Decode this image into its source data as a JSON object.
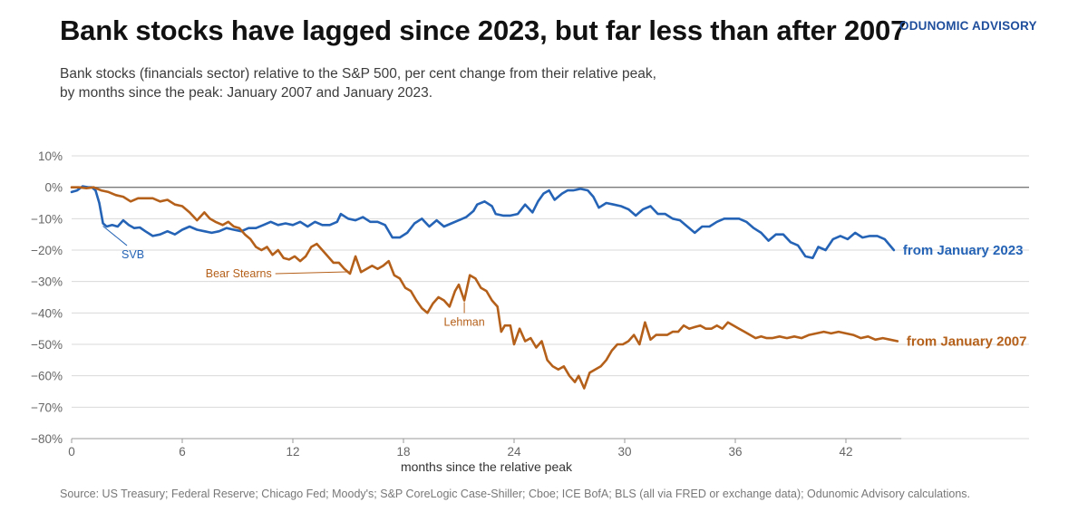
{
  "header": {
    "title": "Bank stocks have lagged since 2023, but far less than after 2007",
    "brand": "ODUNOMIC ADVISORY",
    "subtitle_line1": "Bank stocks (financials sector) relative to the S&P 500, per cent change from their relative peak,",
    "subtitle_line2": "by months since the peak: January 2007 and January 2023."
  },
  "source": "Source: US Treasury; Federal Reserve; Chicago Fed; Moody's; S&P CoreLogic Case-Shiller; Cboe; ICE BofA; BLS (all via FRED or exchange data); Odunomic Advisory calculations.",
  "colors": {
    "series_2023": "#2463b5",
    "series_2007": "#b5601a",
    "grid": "#d9d9d9",
    "zero_line": "#7a7a7a"
  },
  "chart_data": {
    "type": "line",
    "xlabel": "months since the relative peak",
    "ylabel": "",
    "xlim": [
      0,
      45
    ],
    "ylim": [
      -80,
      10
    ],
    "xticks": [
      0,
      6,
      12,
      18,
      24,
      30,
      36,
      42
    ],
    "yticks": [
      10,
      0,
      -10,
      -20,
      -30,
      -40,
      -50,
      -60,
      -70,
      -80
    ],
    "ytick_labels": [
      "10%",
      "0%",
      "−10%",
      "−20%",
      "−30%",
      "−40%",
      "−50%",
      "−60%",
      "−70%",
      "−80%"
    ],
    "grid": "horizontal",
    "series": [
      {
        "name": "from January 2023",
        "color": "#2463b5",
        "points": [
          [
            0,
            -1.5
          ],
          [
            0.3,
            -1
          ],
          [
            0.6,
            0.3
          ],
          [
            0.9,
            0
          ],
          [
            1.1,
            0
          ],
          [
            1.3,
            -1
          ],
          [
            1.5,
            -5
          ],
          [
            1.7,
            -11.5
          ],
          [
            1.9,
            -12.5
          ],
          [
            2.2,
            -12
          ],
          [
            2.5,
            -12.5
          ],
          [
            2.8,
            -10.5
          ],
          [
            3.1,
            -12
          ],
          [
            3.4,
            -13
          ],
          [
            3.7,
            -12.8
          ],
          [
            4,
            -14
          ],
          [
            4.4,
            -15.5
          ],
          [
            4.8,
            -15
          ],
          [
            5.2,
            -14
          ],
          [
            5.6,
            -15
          ],
          [
            6,
            -13.5
          ],
          [
            6.4,
            -12.5
          ],
          [
            6.8,
            -13.5
          ],
          [
            7.2,
            -14
          ],
          [
            7.6,
            -14.5
          ],
          [
            8,
            -14
          ],
          [
            8.4,
            -13
          ],
          [
            8.8,
            -13.5
          ],
          [
            9.2,
            -14
          ],
          [
            9.6,
            -13
          ],
          [
            10,
            -13
          ],
          [
            10.4,
            -12
          ],
          [
            10.8,
            -11
          ],
          [
            11.2,
            -12
          ],
          [
            11.6,
            -11.5
          ],
          [
            12,
            -12
          ],
          [
            12.4,
            -11
          ],
          [
            12.8,
            -12.5
          ],
          [
            13.2,
            -11
          ],
          [
            13.6,
            -12
          ],
          [
            14,
            -12
          ],
          [
            14.4,
            -11
          ],
          [
            14.6,
            -8.5
          ],
          [
            15,
            -10
          ],
          [
            15.4,
            -10.5
          ],
          [
            15.8,
            -9.5
          ],
          [
            16.2,
            -11
          ],
          [
            16.6,
            -11
          ],
          [
            17,
            -12
          ],
          [
            17.4,
            -16
          ],
          [
            17.8,
            -16
          ],
          [
            18.2,
            -14.5
          ],
          [
            18.6,
            -11.5
          ],
          [
            19,
            -10
          ],
          [
            19.4,
            -12.5
          ],
          [
            19.8,
            -10.5
          ],
          [
            20.2,
            -12.5
          ],
          [
            20.6,
            -11.5
          ],
          [
            21,
            -10.5
          ],
          [
            21.4,
            -9.5
          ],
          [
            21.8,
            -7.5
          ],
          [
            22,
            -5.5
          ],
          [
            22.4,
            -4.5
          ],
          [
            22.8,
            -6
          ],
          [
            23,
            -8.5
          ],
          [
            23.4,
            -9
          ],
          [
            23.8,
            -9
          ],
          [
            24.2,
            -8.5
          ],
          [
            24.6,
            -5.5
          ],
          [
            25,
            -8
          ],
          [
            25.3,
            -4.5
          ],
          [
            25.6,
            -2
          ],
          [
            25.9,
            -1
          ],
          [
            26.2,
            -4
          ],
          [
            26.6,
            -2
          ],
          [
            26.9,
            -1
          ],
          [
            27.2,
            -1
          ],
          [
            27.6,
            -0.5
          ],
          [
            28,
            -1
          ],
          [
            28.3,
            -3
          ],
          [
            28.6,
            -6.5
          ],
          [
            29,
            -5
          ],
          [
            29.4,
            -5.5
          ],
          [
            29.8,
            -6
          ],
          [
            30.2,
            -7
          ],
          [
            30.6,
            -9
          ],
          [
            31,
            -7
          ],
          [
            31.4,
            -6
          ],
          [
            31.8,
            -8.5
          ],
          [
            32.2,
            -8.5
          ],
          [
            32.6,
            -10
          ],
          [
            33,
            -10.5
          ],
          [
            33.4,
            -12.5
          ],
          [
            33.8,
            -14.5
          ],
          [
            34.2,
            -12.5
          ],
          [
            34.6,
            -12.5
          ],
          [
            35,
            -11
          ],
          [
            35.4,
            -10
          ],
          [
            35.8,
            -10
          ],
          [
            36.2,
            -10
          ],
          [
            36.6,
            -11
          ],
          [
            37,
            -13
          ],
          [
            37.4,
            -14.5
          ],
          [
            37.8,
            -17
          ],
          [
            38.2,
            -15
          ],
          [
            38.6,
            -15
          ],
          [
            39,
            -17.5
          ],
          [
            39.4,
            -18.5
          ],
          [
            39.8,
            -22
          ],
          [
            40.2,
            -22.5
          ],
          [
            40.5,
            -19
          ],
          [
            40.9,
            -20
          ],
          [
            41.3,
            -16.5
          ],
          [
            41.7,
            -15.5
          ],
          [
            42.1,
            -16.5
          ],
          [
            42.5,
            -14.5
          ],
          [
            42.9,
            -16
          ],
          [
            43.3,
            -15.5
          ],
          [
            43.7,
            -15.5
          ],
          [
            44.1,
            -16.5
          ],
          [
            44.6,
            -20
          ]
        ]
      },
      {
        "name": "from January 2007",
        "color": "#b5601a",
        "points": [
          [
            0,
            0
          ],
          [
            0.4,
            0
          ],
          [
            0.8,
            -0.3
          ],
          [
            1.2,
            0
          ],
          [
            1.6,
            -1
          ],
          [
            2,
            -1.5
          ],
          [
            2.4,
            -2.5
          ],
          [
            2.8,
            -3
          ],
          [
            3.2,
            -4.5
          ],
          [
            3.6,
            -3.5
          ],
          [
            4,
            -3.5
          ],
          [
            4.4,
            -3.5
          ],
          [
            4.8,
            -4.5
          ],
          [
            5.2,
            -4
          ],
          [
            5.6,
            -5.5
          ],
          [
            6,
            -6
          ],
          [
            6.4,
            -8
          ],
          [
            6.8,
            -10.5
          ],
          [
            7.2,
            -8
          ],
          [
            7.5,
            -10
          ],
          [
            7.8,
            -11
          ],
          [
            8.2,
            -12
          ],
          [
            8.5,
            -11
          ],
          [
            8.8,
            -12.5
          ],
          [
            9.1,
            -13
          ],
          [
            9.4,
            -15
          ],
          [
            9.7,
            -16.5
          ],
          [
            10,
            -19
          ],
          [
            10.3,
            -20
          ],
          [
            10.6,
            -19
          ],
          [
            10.9,
            -21.5
          ],
          [
            11.2,
            -20
          ],
          [
            11.5,
            -22.5
          ],
          [
            11.8,
            -23
          ],
          [
            12.1,
            -22
          ],
          [
            12.4,
            -23.5
          ],
          [
            12.7,
            -22
          ],
          [
            13,
            -19
          ],
          [
            13.3,
            -18
          ],
          [
            13.6,
            -20
          ],
          [
            13.9,
            -22
          ],
          [
            14.2,
            -24
          ],
          [
            14.5,
            -24
          ],
          [
            14.8,
            -26
          ],
          [
            15.1,
            -27.5
          ],
          [
            15.4,
            -22
          ],
          [
            15.7,
            -27
          ],
          [
            16,
            -26
          ],
          [
            16.3,
            -25
          ],
          [
            16.6,
            -26
          ],
          [
            16.9,
            -25
          ],
          [
            17.2,
            -23.5
          ],
          [
            17.5,
            -28
          ],
          [
            17.8,
            -29
          ],
          [
            18.1,
            -32
          ],
          [
            18.4,
            -33
          ],
          [
            18.7,
            -36
          ],
          [
            19,
            -38.5
          ],
          [
            19.3,
            -40
          ],
          [
            19.6,
            -37
          ],
          [
            19.9,
            -35
          ],
          [
            20.2,
            -36
          ],
          [
            20.5,
            -38
          ],
          [
            20.8,
            -33
          ],
          [
            21,
            -31
          ],
          [
            21.3,
            -36
          ],
          [
            21.6,
            -28
          ],
          [
            21.9,
            -29
          ],
          [
            22.2,
            -32
          ],
          [
            22.5,
            -33
          ],
          [
            22.8,
            -36
          ],
          [
            23.1,
            -38
          ],
          [
            23.3,
            -46
          ],
          [
            23.5,
            -44
          ],
          [
            23.8,
            -44
          ],
          [
            24,
            -50
          ],
          [
            24.3,
            -45
          ],
          [
            24.6,
            -49
          ],
          [
            24.9,
            -48
          ],
          [
            25.2,
            -51
          ],
          [
            25.5,
            -49
          ],
          [
            25.8,
            -55
          ],
          [
            26.1,
            -57
          ],
          [
            26.4,
            -58
          ],
          [
            26.7,
            -57
          ],
          [
            27,
            -60
          ],
          [
            27.3,
            -62
          ],
          [
            27.5,
            -60
          ],
          [
            27.8,
            -64
          ],
          [
            28.1,
            -59
          ],
          [
            28.4,
            -58
          ],
          [
            28.7,
            -57
          ],
          [
            29,
            -55
          ],
          [
            29.3,
            -52
          ],
          [
            29.6,
            -50
          ],
          [
            29.9,
            -50
          ],
          [
            30.2,
            -49
          ],
          [
            30.5,
            -47
          ],
          [
            30.8,
            -50
          ],
          [
            31.1,
            -43
          ],
          [
            31.4,
            -48.5
          ],
          [
            31.7,
            -47
          ],
          [
            32,
            -47
          ],
          [
            32.3,
            -47
          ],
          [
            32.6,
            -46
          ],
          [
            32.9,
            -46
          ],
          [
            33.2,
            -44
          ],
          [
            33.5,
            -45
          ],
          [
            33.8,
            -44.5
          ],
          [
            34.1,
            -44
          ],
          [
            34.4,
            -45
          ],
          [
            34.7,
            -45
          ],
          [
            35,
            -44
          ],
          [
            35.3,
            -45
          ],
          [
            35.6,
            -43
          ],
          [
            35.9,
            -44
          ],
          [
            36.2,
            -45
          ],
          [
            36.5,
            -46
          ],
          [
            36.8,
            -47
          ],
          [
            37.1,
            -48
          ],
          [
            37.4,
            -47.5
          ],
          [
            37.7,
            -48
          ],
          [
            38,
            -48
          ],
          [
            38.4,
            -47.5
          ],
          [
            38.8,
            -48
          ],
          [
            39.2,
            -47.5
          ],
          [
            39.6,
            -48
          ],
          [
            40,
            -47
          ],
          [
            40.4,
            -46.5
          ],
          [
            40.8,
            -46
          ],
          [
            41.2,
            -46.5
          ],
          [
            41.6,
            -46
          ],
          [
            42,
            -46.5
          ],
          [
            42.4,
            -47
          ],
          [
            42.8,
            -48
          ],
          [
            43.2,
            -47.5
          ],
          [
            43.6,
            -48.5
          ],
          [
            44,
            -48
          ],
          [
            44.4,
            -48.5
          ],
          [
            44.8,
            -49
          ]
        ]
      }
    ],
    "annotations": [
      {
        "text": "SVB",
        "series": 0,
        "x": 1.7,
        "y": -11.5,
        "label_x": 3.1,
        "label_y": -22
      },
      {
        "text": "Bear Stearns",
        "series": 1,
        "x": 15.1,
        "y": -27.5,
        "label_x": 8.2,
        "label_y": -27.5
      },
      {
        "text": "Lehman",
        "series": 1,
        "x": 21.3,
        "y": -36,
        "label_x": 21.3,
        "label_y": -43.5
      }
    ]
  }
}
